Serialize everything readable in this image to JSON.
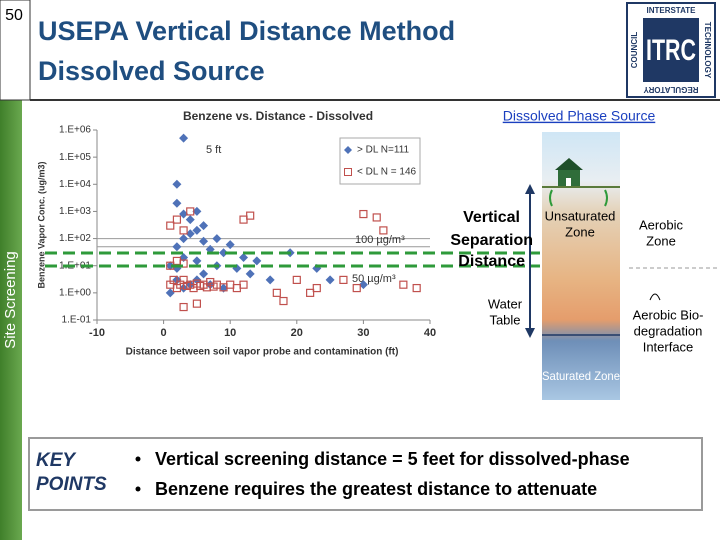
{
  "slide_number": "50",
  "title_lines": [
    "USEPA Vertical Distance Method",
    "Dissolved Source"
  ],
  "sidebar": "Site Screening",
  "logo": {
    "top": "INTERSTATE",
    "right": "TECHNOLOGY",
    "bottom": "REGULATORY",
    "left": "COUNCIL",
    "mark": "ITRC"
  },
  "chart_data": {
    "type": "scatter",
    "title": "Benzene vs. Distance - Dissolved",
    "x_label": "Distance between soil vapor probe and contamination (ft)",
    "y_label": "Benzene Vapor Conc. (ug/m3)",
    "xlim": [
      -10,
      40
    ],
    "xticks": [
      -10,
      0,
      10,
      20,
      30,
      40
    ],
    "ylim": [
      0.1,
      1000000
    ],
    "yscale": "log",
    "yticks": [
      {
        "value": 0.1,
        "label": "1.E-01"
      },
      {
        "value": 1,
        "label": "1.E+00"
      },
      {
        "value": 10,
        "label": "1.E+01"
      },
      {
        "value": 100,
        "label": "1.E+02"
      },
      {
        "value": 1000,
        "label": "1.E+03"
      },
      {
        "value": 10000,
        "label": "1.E+04"
      },
      {
        "value": 100000,
        "label": "1.E+05"
      },
      {
        "value": 1000000,
        "label": "1.E+06"
      }
    ],
    "legend": "upper right",
    "reference_lines": [
      {
        "value": 100,
        "label": "100 µg/m³"
      },
      {
        "value": 50,
        "label": "50 µg/m³"
      }
    ],
    "annotations": [
      "5 ft"
    ],
    "series": [
      {
        "name": "> DL N=111",
        "color": "#4f72b8",
        "marker": "diamond",
        "x": [
          3,
          2,
          2,
          3,
          4,
          5,
          6,
          5,
          4,
          3,
          2,
          6,
          7,
          8,
          9,
          10,
          12,
          14,
          11,
          8,
          6,
          5,
          4,
          3,
          2,
          1,
          7,
          9,
          13,
          16,
          19,
          23,
          25,
          30,
          3,
          5,
          1,
          2
        ],
        "y": [
          500000,
          10000,
          2000,
          800,
          500,
          1000,
          300,
          200,
          150,
          100,
          50,
          80,
          40,
          100,
          30,
          60,
          20,
          15,
          8,
          10,
          5,
          3,
          2,
          1.5,
          3,
          1,
          2,
          1.5,
          5,
          3,
          30,
          8,
          3,
          2,
          20,
          15,
          10,
          8
        ]
      },
      {
        "name": "< DL N = 146",
        "color": "#c0504d",
        "marker": "square",
        "x": [
          1,
          1.5,
          2,
          2.5,
          3,
          3.5,
          4,
          4.5,
          5,
          5.5,
          6,
          6.5,
          7,
          7.5,
          8,
          9,
          10,
          11,
          12,
          1,
          2,
          3,
          1,
          2,
          3,
          4,
          12,
          13,
          30,
          32,
          27,
          29,
          22,
          23,
          18,
          3,
          5,
          17,
          36,
          38,
          33,
          20
        ],
        "y": [
          2,
          3,
          1.5,
          2,
          3,
          1.8,
          2,
          1.5,
          2.2,
          1.8,
          2,
          1.6,
          2.5,
          1.7,
          2,
          1.6,
          2,
          1.5,
          2,
          10,
          15,
          12,
          300,
          500,
          200,
          1000,
          500,
          700,
          800,
          600,
          3,
          1.5,
          1,
          1.5,
          0.5,
          0.3,
          0.4,
          1,
          2,
          1.5,
          200,
          3
        ]
      }
    ]
  },
  "diagram": {
    "title": "Dissolved Phase Source",
    "separation": [
      "Vertical",
      "Separation",
      "Distance"
    ],
    "unsaturated": [
      "Unsaturated",
      "Zone"
    ],
    "aerobic": [
      "Aerobic",
      "Zone"
    ],
    "water_table": [
      "Water",
      "Table"
    ],
    "interface": [
      "Aerobic Bio-",
      "degradation",
      "Interface"
    ],
    "saturated": "Saturated Zone"
  },
  "key_points": {
    "label": [
      "KEY",
      "POINTS"
    ],
    "items": [
      "Vertical screening distance = 5 feet for dissolved-phase",
      "Benzene requires the greatest distance to attenuate"
    ]
  }
}
